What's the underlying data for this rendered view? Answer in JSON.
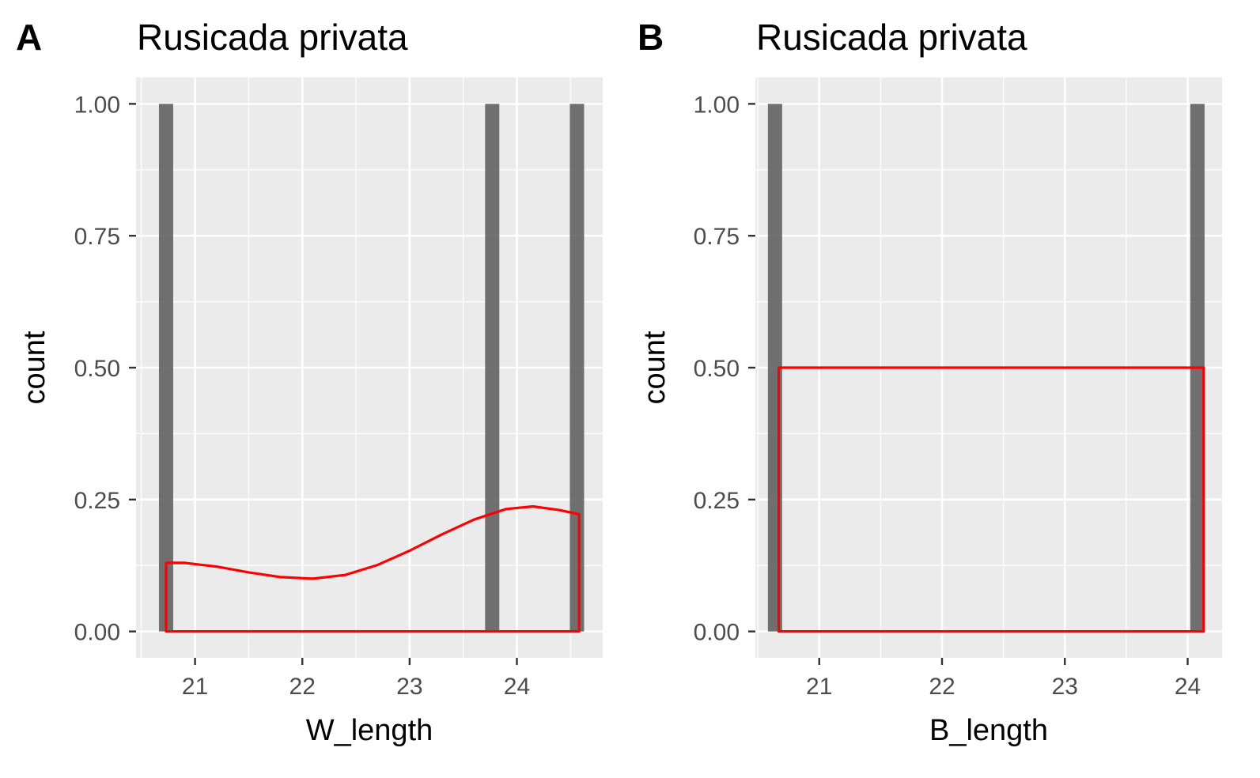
{
  "chart_data": [
    {
      "type": "bar",
      "panel_tag": "A",
      "title": "Rusicada privata",
      "xlabel": "W_length",
      "ylabel": "count",
      "xlim": [
        20.45,
        24.8
      ],
      "ylim": [
        -0.05,
        1.05
      ],
      "x_ticks": [
        21,
        22,
        23,
        24
      ],
      "y_ticks": [
        0.0,
        0.25,
        0.5,
        0.75,
        1.0
      ],
      "y_tick_labels": [
        "0.00",
        "0.25",
        "0.50",
        "0.75",
        "1.00"
      ],
      "x_tick_labels": [
        "21",
        "22",
        "23",
        "24"
      ],
      "grid": true,
      "bar_color": "#595959",
      "bars": [
        {
          "x": 20.73,
          "count": 1
        },
        {
          "x": 23.77,
          "count": 1
        },
        {
          "x": 24.56,
          "count": 1
        }
      ],
      "density_color": "#ff0000",
      "density": {
        "x": [
          20.73,
          20.9,
          21.2,
          21.5,
          21.8,
          22.1,
          22.4,
          22.7,
          23.0,
          23.3,
          23.6,
          23.9,
          24.15,
          24.4,
          24.58
        ],
        "y": [
          0.13,
          0.13,
          0.123,
          0.112,
          0.103,
          0.1,
          0.107,
          0.126,
          0.153,
          0.184,
          0.212,
          0.232,
          0.237,
          0.23,
          0.222
        ]
      }
    },
    {
      "type": "bar",
      "panel_tag": "B",
      "title": "Rusicada privata",
      "xlabel": "B_length",
      "ylabel": "count",
      "xlim": [
        20.48,
        24.28
      ],
      "ylim": [
        -0.05,
        1.05
      ],
      "x_ticks": [
        21,
        22,
        23,
        24
      ],
      "y_ticks": [
        0.0,
        0.25,
        0.5,
        0.75,
        1.0
      ],
      "y_tick_labels": [
        "0.00",
        "0.25",
        "0.50",
        "0.75",
        "1.00"
      ],
      "x_tick_labels": [
        "21",
        "22",
        "23",
        "24"
      ],
      "grid": true,
      "bar_color": "#595959",
      "bars": [
        {
          "x": 20.64,
          "count": 1
        },
        {
          "x": 24.08,
          "count": 1
        }
      ],
      "density_color": "#ff0000",
      "density": {
        "x": [
          20.67,
          24.13
        ],
        "y": [
          0.5,
          0.5
        ]
      }
    }
  ]
}
